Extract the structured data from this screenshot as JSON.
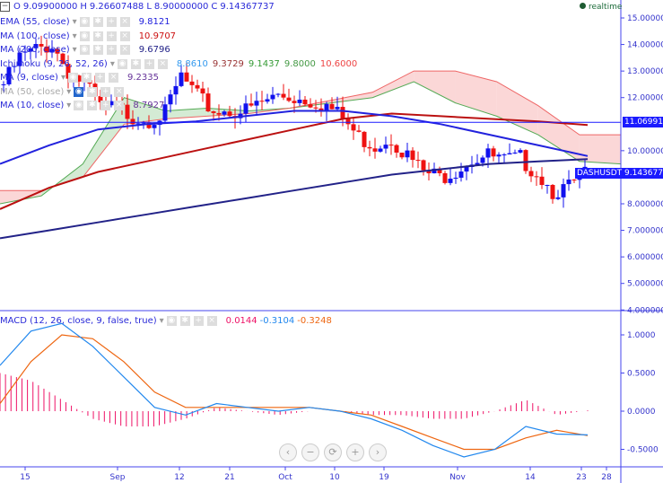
{
  "ohlc": {
    "o_label": "O",
    "o": "9.09900000",
    "h_label": "H",
    "h": "9.26607488",
    "l_label": "L",
    "l": "8.90000000",
    "c_label": "C",
    "c": "9.14367737"
  },
  "indicators": [
    {
      "label": "EMA (55, close)",
      "values": [
        "9.8121"
      ],
      "colors": [
        "#2222dd"
      ]
    },
    {
      "label": "MA (100, close)",
      "values": [
        "10.9707"
      ],
      "colors": [
        "#cc1111"
      ]
    },
    {
      "label": "MA (200, close)",
      "values": [
        "9.6796"
      ],
      "colors": [
        "#222288"
      ]
    },
    {
      "label": "Ichimoku (9, 26, 52, 26)",
      "values": [
        "8.8610",
        "9.3729",
        "9.1437",
        "9.8000",
        "10.6000"
      ],
      "colors": [
        "#3399ee",
        "#993333",
        "#339933",
        "#449944",
        "#ee4444"
      ]
    },
    {
      "label": "MA (9, close)",
      "values": [
        "9.2335"
      ],
      "colors": [
        "#663399"
      ]
    },
    {
      "label": "MA (50, close)",
      "values": [],
      "colors": []
    },
    {
      "label": "MA (10, close)",
      "values": [
        "8.7927"
      ],
      "colors": [
        "#663399"
      ]
    }
  ],
  "macd": {
    "label": "MACD (12, 26, close, 9, false, true)",
    "values": [
      "0.0144",
      "-0.3104",
      "-0.3248"
    ],
    "colors": [
      "#ee1166",
      "#2288ee",
      "#ee6611"
    ]
  },
  "realtime": "realtime",
  "symbol_tag": "DASHUSDT",
  "price_tag": "9.14367737",
  "hline_tag": "11.06991212",
  "nav_buttons": [
    "‹",
    "−",
    "⟳",
    "+",
    "›"
  ],
  "chart_data": {
    "type": "candlestick",
    "price_axis": {
      "ticks": [
        "15.00000000",
        "14.00000000",
        "13.00000000",
        "12.00000000",
        "10.00000000",
        "8.00000000",
        "7.00000000",
        "6.00000000",
        "5.00000000",
        "4.00000000"
      ],
      "range": [
        4,
        15.6
      ]
    },
    "macd_axis": {
      "ticks": [
        "1.0000",
        "0.5000",
        "0.0000",
        "-0.5000"
      ],
      "range": [
        -0.65,
        1.2
      ]
    },
    "x_ticks": [
      "15",
      "Sep",
      "12",
      "21",
      "Oct",
      "10",
      "19",
      "Nov",
      "14",
      "23",
      "28"
    ],
    "horizontal_line": 11.0699,
    "close_points": [
      12.5,
      13.5,
      13.8,
      14.0,
      13.0,
      12.5,
      11.6,
      11.6,
      11.3,
      11.2,
      11.4,
      12.8,
      12.0,
      11.5,
      11.5,
      11.5,
      11.8,
      12.1,
      12.0,
      11.9,
      11.7,
      11.2,
      10.5,
      10.2,
      10.5,
      9.8,
      9.2,
      9.0,
      9.3,
      9.7,
      9.8,
      9.6,
      9.7,
      9.2,
      8.5,
      8.6,
      9.14
    ],
    "ema55": [
      9.5,
      10.2,
      10.8,
      11.0,
      11.1,
      11.3,
      11.5,
      11.5,
      11.3,
      11.0,
      10.6,
      10.2,
      9.8
    ],
    "ma100": [
      7.8,
      8.6,
      9.2,
      9.6,
      10.0,
      10.4,
      10.8,
      11.2,
      11.4,
      11.3,
      11.2,
      11.1,
      10.97
    ],
    "ma200": [
      6.7,
      7.0,
      7.3,
      7.6,
      7.9,
      8.2,
      8.5,
      8.8,
      9.1,
      9.3,
      9.5,
      9.6,
      9.68
    ],
    "span_a": [
      8.0,
      8.3,
      9.5,
      12.0,
      11.5,
      11.6,
      11.5,
      11.6,
      11.8,
      12.0,
      12.6,
      11.8,
      11.3,
      10.6,
      9.6,
      9.5
    ],
    "span_b": [
      8.5,
      8.5,
      9.0,
      11.0,
      11.2,
      11.3,
      11.4,
      11.6,
      11.9,
      12.2,
      13.0,
      13.0,
      12.6,
      11.7,
      10.6,
      10.6
    ],
    "macd_line": [
      0.6,
      1.05,
      1.15,
      0.85,
      0.45,
      0.05,
      -0.05,
      0.1,
      0.05,
      0.0,
      0.05,
      0.0,
      -0.1,
      -0.25,
      -0.45,
      -0.6,
      -0.5,
      -0.2,
      -0.3,
      -0.31
    ],
    "signal_line": [
      0.1,
      0.65,
      1.0,
      0.95,
      0.65,
      0.25,
      0.05,
      0.05,
      0.05,
      0.05,
      0.05,
      0.0,
      -0.05,
      -0.2,
      -0.35,
      -0.5,
      -0.5,
      -0.35,
      -0.25,
      -0.32
    ],
    "histogram_scale": "macd minus signal"
  }
}
